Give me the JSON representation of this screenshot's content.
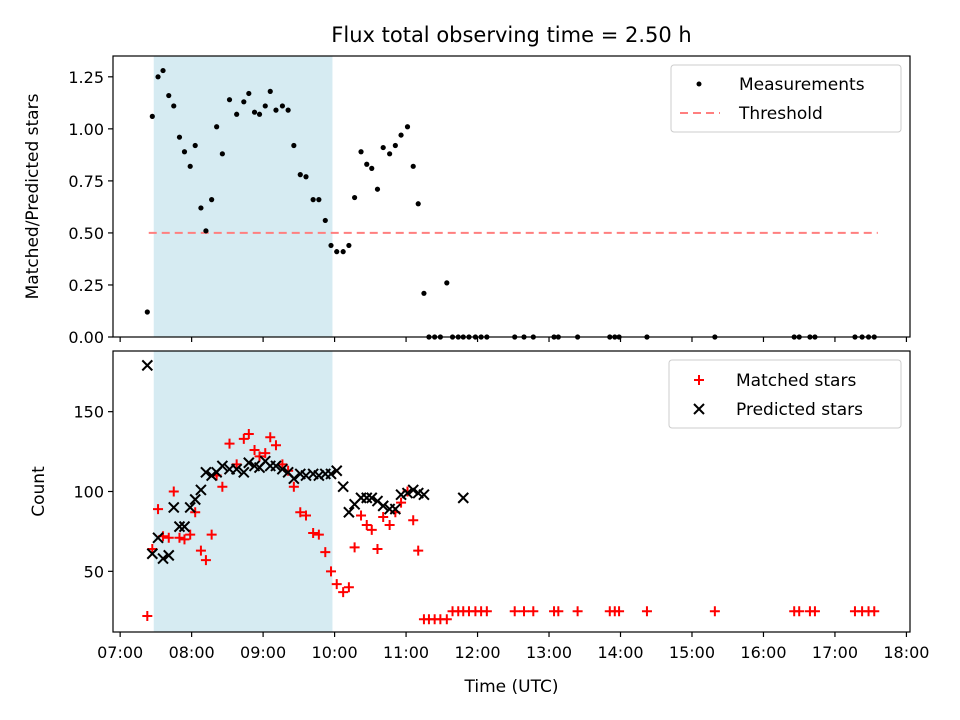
{
  "chart_data": [
    {
      "type": "scatter",
      "panel": "top",
      "title": "Flux total observing time = 2.50 h",
      "xlabel": "",
      "ylabel": "Matched/Predicted stars",
      "xlim": [
        6.9,
        18.05
      ],
      "ylim": [
        0,
        1.35
      ],
      "yticks": [
        0,
        0.25,
        0.5,
        0.75,
        1.0,
        1.25
      ],
      "ytick_labels": [
        "0.00",
        "0.25",
        "0.50",
        "0.75",
        "1.00",
        "1.25"
      ],
      "legend_position": "upper right",
      "shaded_span": {
        "x0": 7.47,
        "x1": 9.97,
        "color": "#add8e6"
      },
      "threshold": {
        "label": "Threshold",
        "value": 0.5,
        "x0": 7.4,
        "x1": 17.6,
        "color": "#ff7f7f"
      },
      "series": [
        {
          "name": "Measurements",
          "color": "#000000",
          "x": [
            7.38,
            7.45,
            7.53,
            7.6,
            7.68,
            7.75,
            7.83,
            7.9,
            7.98,
            8.05,
            8.13,
            8.2,
            8.28,
            8.35,
            8.43,
            8.53,
            8.63,
            8.73,
            8.8,
            8.88,
            8.95,
            9.03,
            9.1,
            9.18,
            9.27,
            9.35,
            9.43,
            9.52,
            9.6,
            9.7,
            9.78,
            9.87,
            9.95,
            10.03,
            10.12,
            10.2,
            10.28,
            10.37,
            10.45,
            10.52,
            10.6,
            10.68,
            10.77,
            10.85,
            10.93,
            11.02,
            11.1,
            11.17,
            11.25,
            11.32,
            11.4,
            11.48,
            11.57,
            11.65,
            11.73,
            11.8,
            11.88,
            11.97,
            12.05,
            12.13,
            12.52,
            12.65,
            12.78,
            13.07,
            13.13,
            13.4,
            13.85,
            13.92,
            13.98,
            14.37,
            15.32,
            16.43,
            16.5,
            16.65,
            16.72,
            17.28,
            17.38,
            17.47,
            17.55
          ],
          "y": [
            0.12,
            1.06,
            1.25,
            1.28,
            1.16,
            1.11,
            0.96,
            0.89,
            0.82,
            0.92,
            0.62,
            0.51,
            0.66,
            1.01,
            0.88,
            1.14,
            1.07,
            1.13,
            1.17,
            1.08,
            1.07,
            1.11,
            1.18,
            1.09,
            1.11,
            1.09,
            0.92,
            0.78,
            0.77,
            0.66,
            0.66,
            0.56,
            0.44,
            0.41,
            0.41,
            0.44,
            0.67,
            0.89,
            0.83,
            0.81,
            0.71,
            0.91,
            0.88,
            0.92,
            0.97,
            1.01,
            0.82,
            0.64,
            0.21,
            0,
            0,
            0,
            0.26,
            0,
            0,
            0,
            0,
            0,
            0,
            0,
            0,
            0,
            0,
            0,
            0,
            0,
            0,
            0,
            0,
            0,
            0,
            0,
            0,
            0,
            0,
            0,
            0,
            0,
            0
          ]
        }
      ]
    },
    {
      "type": "scatter",
      "panel": "bottom",
      "xlabel": "Time (UTC)",
      "ylabel": "Count",
      "xlim": [
        6.9,
        18.05
      ],
      "ylim": [
        12,
        188
      ],
      "yticks": [
        50,
        100,
        150
      ],
      "ytick_labels": [
        "50",
        "100",
        "150"
      ],
      "xticks": [
        7,
        8,
        9,
        10,
        11,
        12,
        13,
        14,
        15,
        16,
        17,
        18
      ],
      "xtick_labels": [
        "07:00",
        "08:00",
        "09:00",
        "10:00",
        "11:00",
        "12:00",
        "13:00",
        "14:00",
        "15:00",
        "16:00",
        "17:00",
        "18:00"
      ],
      "legend_position": "upper right",
      "shaded_span": {
        "x0": 7.47,
        "x1": 9.97,
        "color": "#add8e6"
      },
      "series": [
        {
          "name": "Matched stars",
          "marker": "+",
          "color": "#ff0000",
          "x": [
            7.38,
            7.45,
            7.53,
            7.6,
            7.68,
            7.75,
            7.83,
            7.9,
            7.98,
            8.05,
            8.13,
            8.2,
            8.28,
            8.35,
            8.43,
            8.53,
            8.63,
            8.73,
            8.8,
            8.88,
            8.95,
            9.03,
            9.1,
            9.18,
            9.27,
            9.35,
            9.43,
            9.52,
            9.6,
            9.7,
            9.78,
            9.87,
            9.95,
            10.03,
            10.12,
            10.2,
            10.28,
            10.37,
            10.45,
            10.52,
            10.6,
            10.68,
            10.77,
            10.85,
            10.93,
            11.02,
            11.1,
            11.17,
            11.25,
            11.32,
            11.4,
            11.48,
            11.57,
            11.65,
            11.73,
            11.8,
            11.88,
            11.97,
            12.05,
            12.13,
            12.52,
            12.65,
            12.78,
            13.07,
            13.13,
            13.4,
            13.85,
            13.92,
            13.98,
            14.37,
            15.32,
            16.43,
            16.5,
            16.65,
            16.72,
            17.28,
            17.38,
            17.47,
            17.55
          ],
          "y": [
            22,
            64,
            89,
            72,
            71,
            100,
            71,
            70,
            73,
            87,
            63,
            57,
            73,
            110,
            103,
            130,
            117,
            133,
            136,
            126,
            122,
            124,
            134,
            129,
            117,
            113,
            103,
            87,
            85,
            74,
            73,
            62,
            50,
            42,
            37,
            40,
            65,
            85,
            79,
            76,
            64,
            84,
            79,
            87,
            93,
            100,
            82,
            63,
            20,
            20,
            20,
            20,
            20,
            25,
            25,
            25,
            25,
            25,
            25,
            25,
            25,
            25,
            25,
            25,
            25,
            25,
            25,
            25,
            25,
            25,
            25,
            25,
            25,
            25,
            25,
            25,
            25,
            25,
            25
          ]
        },
        {
          "name": "Predicted stars",
          "marker": "x",
          "color": "#000000",
          "x": [
            7.38,
            7.45,
            7.53,
            7.6,
            7.68,
            7.75,
            7.83,
            7.9,
            7.98,
            8.05,
            8.13,
            8.2,
            8.28,
            8.35,
            8.43,
            8.53,
            8.63,
            8.73,
            8.8,
            8.88,
            8.95,
            9.03,
            9.1,
            9.18,
            9.27,
            9.35,
            9.43,
            9.52,
            9.6,
            9.7,
            9.78,
            9.87,
            9.95,
            10.03,
            10.12,
            10.2,
            10.28,
            10.37,
            10.45,
            10.52,
            10.6,
            10.68,
            10.77,
            10.85,
            10.93,
            11.02,
            11.1,
            11.17,
            11.25,
            11.8
          ],
          "y": [
            179,
            61,
            71,
            58,
            60,
            90,
            78,
            78,
            90,
            95,
            101,
            112,
            110,
            112,
            116,
            114,
            114,
            112,
            118,
            116,
            115,
            119,
            116,
            116,
            114,
            112,
            108,
            111,
            110,
            111,
            110,
            111,
            111,
            113,
            103,
            87,
            92,
            96,
            96,
            96,
            94,
            91,
            89,
            89,
            98,
            99,
            101,
            99,
            98,
            96
          ]
        }
      ]
    }
  ]
}
